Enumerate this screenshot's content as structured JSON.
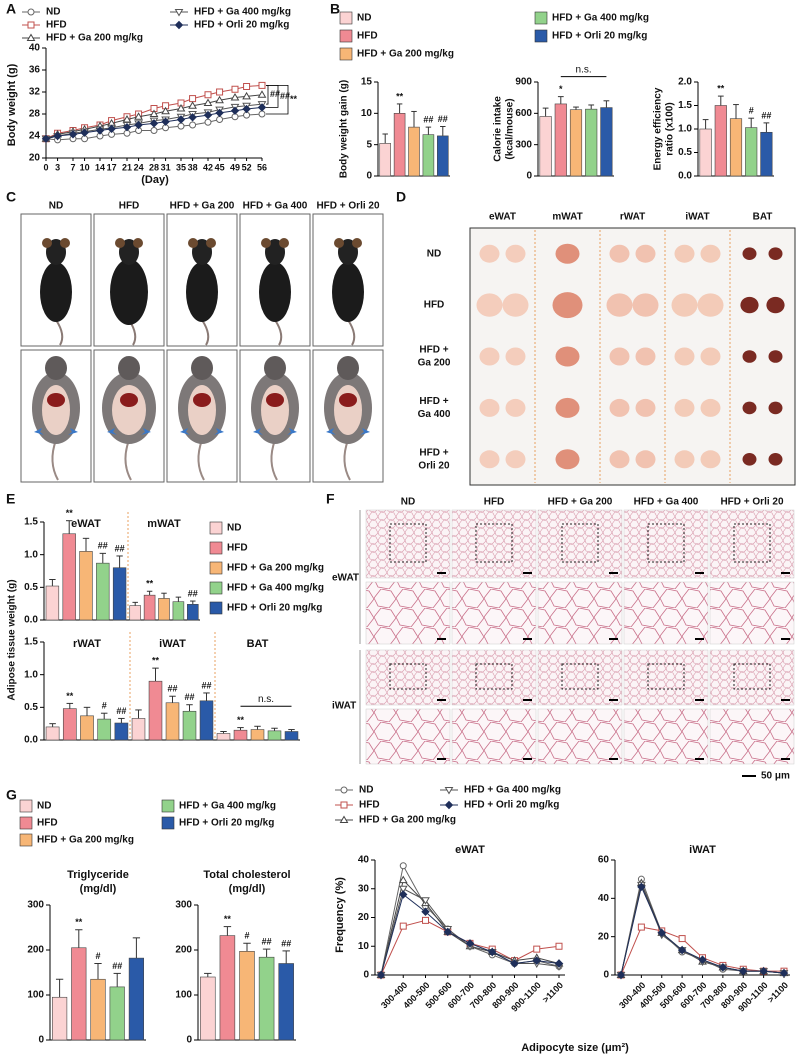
{
  "panel_labels": [
    "A",
    "B",
    "C",
    "D",
    "E",
    "F",
    "G"
  ],
  "chart_data": [
    {
      "type": "line",
      "ylabel": "Body weight (g)",
      "xlabel": "(Day)",
      "legend": [
        {
          "name": "ND",
          "color": "#666666",
          "marker": "circle"
        },
        {
          "name": "HFD",
          "color": "#c0504d",
          "marker": "square"
        },
        {
          "name": "HFD + Ga 200 mg/kg",
          "color": "#444444",
          "marker": "triangle-up"
        },
        {
          "name": "HFD + Ga 400 mg/kg",
          "color": "#555555",
          "marker": "triangle-down"
        },
        {
          "name": "HFD + Orli 20 mg/kg",
          "color": "#1f2f5a",
          "marker": "diamond"
        }
      ],
      "x": [
        0,
        3,
        7,
        10,
        14,
        17,
        21,
        24,
        28,
        31,
        35,
        38,
        42,
        45,
        49,
        52,
        56
      ],
      "xlim": [
        0,
        56
      ],
      "xticks": [
        0,
        3,
        7,
        10,
        14,
        17,
        21,
        24,
        28,
        31,
        35,
        38,
        42,
        45,
        49,
        52,
        56
      ],
      "subplots": [
        {
          "ylim": [
            20,
            40
          ],
          "yticks": [
            20,
            24,
            28,
            32,
            36,
            40
          ],
          "series": [
            {
              "values": [
                23.5,
                23.3,
                23.5,
                23.5,
                24,
                24.3,
                24.5,
                25,
                25,
                25.5,
                25.8,
                26,
                26.5,
                27,
                27.5,
                27.8,
                28
              ]
            },
            {
              "values": [
                23.5,
                24.5,
                25,
                25.5,
                26,
                26.8,
                27.5,
                28,
                29,
                29.5,
                30,
                30.8,
                31.5,
                32,
                32.5,
                33,
                33.2
              ]
            },
            {
              "values": [
                23.5,
                24.3,
                24.8,
                25.2,
                25.8,
                26.3,
                27,
                27.5,
                28,
                28.5,
                29,
                29.5,
                30,
                30.5,
                31,
                31.2,
                31.5
              ]
            },
            {
              "values": [
                23.5,
                24,
                24.5,
                24.8,
                25.2,
                25.5,
                26,
                26.3,
                26.8,
                27,
                27.5,
                28,
                28.3,
                28.8,
                29.3,
                29.5,
                29.8
              ]
            },
            {
              "values": [
                23.5,
                24,
                24.3,
                24.6,
                25,
                25.3,
                25.6,
                26,
                26.3,
                26.6,
                27,
                27.4,
                27.8,
                28.2,
                28.6,
                28.9,
                29.2
              ]
            }
          ],
          "annotations": [
            "##",
            "##",
            "**"
          ]
        }
      ]
    },
    {
      "type": "bar",
      "legend": [
        {
          "name": "ND",
          "color": "#fbd3d3"
        },
        {
          "name": "HFD",
          "color": "#f08a93"
        },
        {
          "name": "HFD + Ga 200 mg/kg",
          "color": "#f7b676"
        },
        {
          "name": "HFD + Ga 400 mg/kg",
          "color": "#92d28b"
        },
        {
          "name": "HFD + Orli 20 mg/kg",
          "color": "#2a5aa8"
        }
      ],
      "subplots": [
        {
          "ylabel": [
            "Body weight gain (g)"
          ],
          "ylim": [
            0,
            15
          ],
          "yticks": [
            0,
            5,
            10,
            15
          ],
          "values": [
            5.2,
            10,
            7.8,
            6.6,
            6.4
          ],
          "errors": [
            1.5,
            1.5,
            2.5,
            1.2,
            1.5
          ],
          "annotations": [
            null,
            "**",
            null,
            "##",
            "##"
          ]
        },
        {
          "ylabel": [
            "Calorie intake",
            "(kcal/mouse)"
          ],
          "ylim": [
            0,
            900
          ],
          "yticks": [
            0,
            300,
            600,
            900
          ],
          "values": [
            570,
            690,
            635,
            640,
            655
          ],
          "errors": [
            80,
            70,
            25,
            40,
            65
          ],
          "annotations": [
            null,
            "*",
            null,
            null,
            null
          ],
          "ns": "n.s."
        },
        {
          "ylabel": [
            "Energy efficiency",
            "ratio (x100)"
          ],
          "ylim": [
            0,
            2
          ],
          "yticks": [
            {
              "value": 0,
              "label": "0.0"
            },
            {
              "value": 0.5,
              "label": "0.5"
            },
            {
              "value": 1,
              "label": "1.0"
            },
            {
              "value": 1.5,
              "label": "1.5"
            },
            {
              "value": 2,
              "label": "2.0"
            }
          ],
          "values": [
            1.0,
            1.5,
            1.22,
            1.03,
            0.93
          ],
          "errors": [
            0.2,
            0.2,
            0.3,
            0.2,
            0.2
          ],
          "annotations": [
            null,
            "**",
            null,
            "#",
            "##"
          ]
        }
      ]
    },
    {
      "type": "bar",
      "ylabel": "Adipose tissue weight (g)",
      "legend": [
        {
          "name": "ND",
          "color": "#fbd3d3"
        },
        {
          "name": "HFD",
          "color": "#f08a93"
        },
        {
          "name": "HFD + Ga 200 mg/kg",
          "color": "#f7b676"
        },
        {
          "name": "HFD + Ga 400 mg/kg",
          "color": "#92d28b"
        },
        {
          "name": "HFD + Orli 20 mg/kg",
          "color": "#2a5aa8"
        }
      ],
      "subplots": [
        {
          "title": "eWAT",
          "ylim": [
            0,
            1.5
          ],
          "yticks": [
            {
              "value": 0,
              "label": "0.0"
            },
            {
              "value": 0.5,
              "label": "0.5"
            },
            {
              "value": 1,
              "label": "1.0"
            },
            {
              "value": 1.5,
              "label": "1.5"
            }
          ],
          "values": [
            0.52,
            1.32,
            1.05,
            0.87,
            0.8
          ],
          "errors": [
            0.1,
            0.2,
            0.2,
            0.15,
            0.18
          ],
          "annotations": [
            null,
            "**",
            null,
            "##",
            "##"
          ]
        },
        {
          "title": "mWAT",
          "ylim": [
            0,
            1.5
          ],
          "values": [
            0.22,
            0.38,
            0.33,
            0.28,
            0.24
          ],
          "errors": [
            0.05,
            0.06,
            0.08,
            0.07,
            0.05
          ],
          "annotations": [
            null,
            "**",
            null,
            null,
            "##"
          ]
        },
        {
          "title": "rWAT",
          "ylim": [
            0,
            1.5
          ],
          "yticks": [
            {
              "value": 0,
              "label": "0.0"
            },
            {
              "value": 0.5,
              "label": "0.5"
            },
            {
              "value": 1,
              "label": "1.0"
            },
            {
              "value": 1.5,
              "label": "1.5"
            }
          ],
          "values": [
            0.2,
            0.48,
            0.37,
            0.32,
            0.26
          ],
          "errors": [
            0.05,
            0.08,
            0.13,
            0.09,
            0.07
          ],
          "annotations": [
            null,
            "**",
            null,
            "#",
            "##"
          ]
        },
        {
          "title": "iWAT",
          "ylim": [
            0,
            1.5
          ],
          "values": [
            0.33,
            0.9,
            0.57,
            0.44,
            0.6
          ],
          "errors": [
            0.13,
            0.2,
            0.1,
            0.1,
            0.12
          ],
          "annotations": [
            null,
            "**",
            "##",
            "##",
            "##"
          ]
        },
        {
          "title": "BAT",
          "ylim": [
            0,
            1.5
          ],
          "values": [
            0.1,
            0.15,
            0.16,
            0.14,
            0.13
          ],
          "errors": [
            0.03,
            0.04,
            0.05,
            0.04,
            0.03
          ],
          "annotations": [
            null,
            "**",
            null,
            null,
            null
          ],
          "ns": "n.s."
        }
      ]
    },
    {
      "type": "line",
      "ylabel": "Frequency (%)",
      "xlabel": "Adipocyte size (μm²)",
      "legend": [
        {
          "name": "ND",
          "color": "#666666",
          "marker": "circle"
        },
        {
          "name": "HFD",
          "color": "#c0504d",
          "marker": "square"
        },
        {
          "name": "HFD + Ga 200 mg/kg",
          "color": "#444444",
          "marker": "triangle-up"
        },
        {
          "name": "HFD + Ga 400 mg/kg",
          "color": "#555555",
          "marker": "triangle-down"
        },
        {
          "name": "HFD + Orli 20 mg/kg",
          "color": "#1f2f5a",
          "marker": "diamond"
        }
      ],
      "categories": [
        null,
        "300-400",
        "400-500",
        "500-600",
        "600-700",
        "700-800",
        "800-900",
        "900-1100",
        ">1100"
      ],
      "subplots": [
        {
          "title": "eWAT",
          "ylim": [
            0,
            40
          ],
          "yticks": [
            0,
            10,
            20,
            30,
            40
          ],
          "series": [
            {
              "values": [
                0,
                38,
                24,
                16,
                10,
                7,
                4,
                5,
                3
              ]
            },
            {
              "values": [
                0,
                17,
                19,
                15,
                11,
                9,
                5,
                9,
                10
              ]
            },
            {
              "values": [
                0,
                33,
                25,
                15,
                10,
                8,
                5,
                6,
                4
              ]
            },
            {
              "values": [
                0,
                30,
                26,
                16,
                10,
                8,
                4,
                4,
                3
              ]
            },
            {
              "values": [
                0,
                28,
                22,
                15,
                11,
                8,
                4,
                5,
                4
              ]
            }
          ]
        },
        {
          "title": "iWAT",
          "ylim": [
            0,
            60
          ],
          "yticks": [
            0,
            20,
            40,
            60
          ],
          "series": [
            {
              "values": [
                0,
                50,
                22,
                12,
                8,
                3,
                2,
                2,
                1
              ]
            },
            {
              "values": [
                0,
                25,
                23,
                19,
                9,
                5,
                3,
                2,
                2
              ]
            },
            {
              "values": [
                0,
                48,
                22,
                13,
                7,
                4,
                2,
                2,
                1
              ]
            },
            {
              "values": [
                0,
                47,
                21,
                13,
                7,
                4,
                2,
                2,
                1
              ]
            },
            {
              "values": [
                0,
                46,
                22,
                13,
                8,
                4,
                2,
                2,
                1
              ]
            }
          ]
        }
      ]
    },
    {
      "type": "bar",
      "legend": [
        {
          "name": "ND",
          "color": "#fbd3d3"
        },
        {
          "name": "HFD",
          "color": "#f08a93"
        },
        {
          "name": "HFD + Ga 200 mg/kg",
          "color": "#f7b676"
        },
        {
          "name": "HFD + Ga 400 mg/kg",
          "color": "#92d28b"
        },
        {
          "name": "HFD + Orli 20 mg/kg",
          "color": "#2a5aa8"
        }
      ],
      "subplots": [
        {
          "title": [
            "Triglyceride",
            "(mg/dl)"
          ],
          "ylim": [
            0,
            300
          ],
          "yticks": [
            0,
            100,
            200,
            300
          ],
          "values": [
            95,
            205,
            135,
            118,
            182
          ],
          "errors": [
            40,
            40,
            35,
            30,
            45
          ],
          "annotations": [
            null,
            "**",
            "#",
            "##",
            null
          ]
        },
        {
          "title": [
            "Total cholesterol",
            "(mg/dl)"
          ],
          "ylim": [
            0,
            300
          ],
          "yticks": [
            0,
            100,
            200,
            300
          ],
          "values": [
            140,
            232,
            197,
            184,
            170
          ],
          "errors": [
            8,
            20,
            18,
            18,
            28
          ],
          "annotations": [
            null,
            "**",
            "#",
            "##",
            "##"
          ]
        }
      ]
    }
  ],
  "photos_c": {
    "columns": [
      "ND",
      "HFD",
      "HFD + Ga 200",
      "HFD + Ga 400",
      "HFD + Orli 20"
    ]
  },
  "organs_d": {
    "columns": [
      "eWAT",
      "mWAT",
      "rWAT",
      "iWAT",
      "BAT"
    ],
    "rows": [
      [
        "ND"
      ],
      [
        "HFD"
      ],
      [
        "HFD +",
        "Ga 200"
      ],
      [
        "HFD +",
        "Ga 400"
      ],
      [
        "HFD +",
        "Orli 20"
      ]
    ]
  },
  "histology_f": {
    "columns": [
      "ND",
      "HFD",
      "HFD + Ga 200",
      "HFD + Ga 400",
      "HFD + Orli 20"
    ],
    "rows": [
      "eWAT",
      "iWAT"
    ],
    "scale_bar": "50 μm"
  }
}
